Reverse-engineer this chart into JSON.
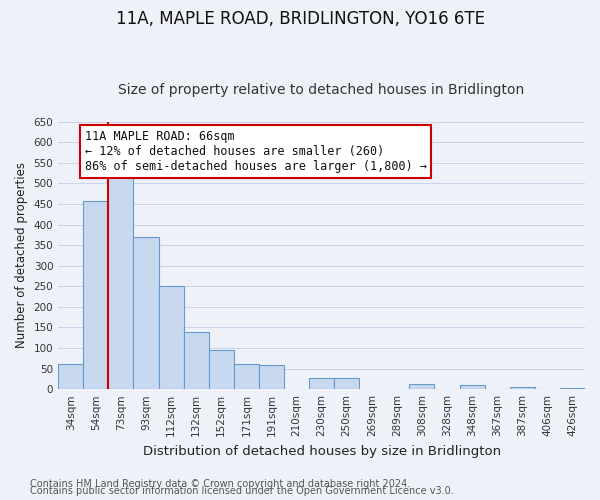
{
  "title": "11A, MAPLE ROAD, BRIDLINGTON, YO16 6TE",
  "subtitle": "Size of property relative to detached houses in Bridlington",
  "xlabel": "Distribution of detached houses by size in Bridlington",
  "ylabel": "Number of detached properties",
  "footnote1": "Contains HM Land Registry data © Crown copyright and database right 2024.",
  "footnote2": "Contains public sector information licensed under the Open Government Licence v3.0.",
  "bar_labels": [
    "34sqm",
    "54sqm",
    "73sqm",
    "93sqm",
    "112sqm",
    "132sqm",
    "152sqm",
    "171sqm",
    "191sqm",
    "210sqm",
    "230sqm",
    "250sqm",
    "269sqm",
    "289sqm",
    "308sqm",
    "328sqm",
    "348sqm",
    "367sqm",
    "387sqm",
    "406sqm",
    "426sqm"
  ],
  "bar_values": [
    62,
    457,
    520,
    370,
    250,
    140,
    95,
    62,
    58,
    0,
    27,
    28,
    0,
    0,
    12,
    0,
    10,
    0,
    5,
    0,
    3
  ],
  "bar_color": "#c8d9ef",
  "bar_edge_color": "#6699cc",
  "property_line_color": "#cc0000",
  "annotation_line1": "11A MAPLE ROAD: 66sqm",
  "annotation_line2": "← 12% of detached houses are smaller (260)",
  "annotation_line3": "86% of semi-detached houses are larger (1,800) →",
  "annotation_box_color": "#ffffff",
  "annotation_box_edge": "#cc0000",
  "ylim": [
    0,
    650
  ],
  "yticks": [
    0,
    50,
    100,
    150,
    200,
    250,
    300,
    350,
    400,
    450,
    500,
    550,
    600,
    650
  ],
  "title_fontsize": 12,
  "subtitle_fontsize": 10,
  "xlabel_fontsize": 9.5,
  "ylabel_fontsize": 8.5,
  "tick_fontsize": 7.5,
  "annotation_fontsize": 8.5,
  "footnote_fontsize": 7,
  "grid_color": "#c8d4e8",
  "background_color": "#eef2f8"
}
